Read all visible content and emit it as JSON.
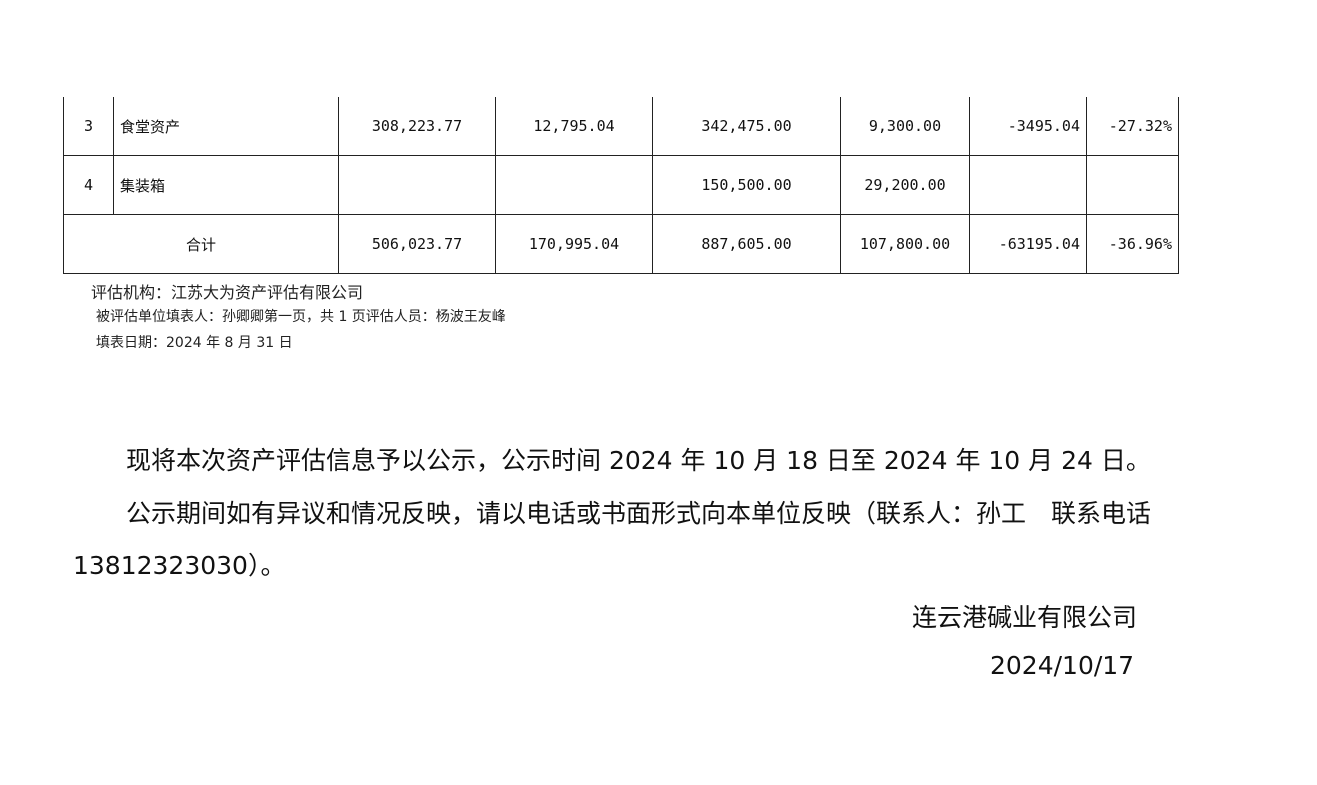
{
  "table": {
    "rows": [
      {
        "no": "3",
        "name": "食堂资产",
        "c1": "308,223.77",
        "c2": "12,795.04",
        "c3": "342,475.00",
        "c4": "9,300.00",
        "c5": "-3495.04",
        "c6": "-27.32%"
      },
      {
        "no": "4",
        "name": "集装箱",
        "c1": "",
        "c2": "",
        "c3": "150,500.00",
        "c4": "29,200.00",
        "c5": "",
        "c6": ""
      }
    ],
    "total": {
      "label": "合计",
      "c1": "506,023.77",
      "c2": "170,995.04",
      "c3": "887,605.00",
      "c4": "107,800.00",
      "c5": "-63195.04",
      "c6": "-36.96%"
    }
  },
  "notes": {
    "agency": "评估机构：江苏大为资产评估有限公司",
    "filler": "被评估单位填表人：孙卿卿第一页，共 1 页评估人员：杨波王友峰",
    "date": "填表日期：2024 年 8 月 31 日"
  },
  "body": {
    "p1": "现将本次资产评估信息予以公示，公示时间 2024 年 10 月 18 日至 2024 年 10 月 24 日。",
    "p2a": "公示期间如有异议和情况反映，请以电话或书面形式向本单位反映（联系人：孙工　联系电话",
    "p2b": "13812323030）。",
    "company": "连云港碱业有限公司",
    "sign_date": "2024/10/17"
  }
}
